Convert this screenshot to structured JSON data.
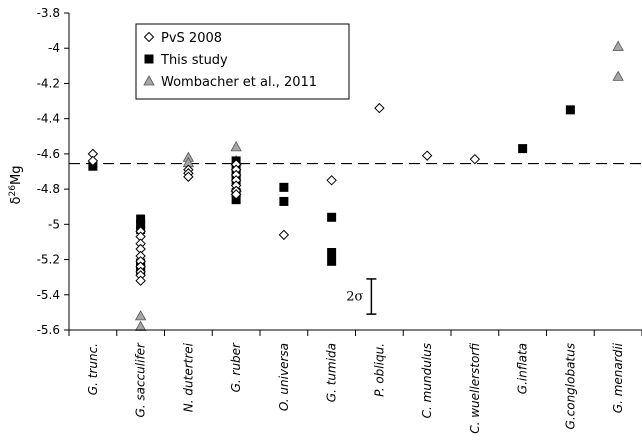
{
  "chart_data": {
    "type": "scatter",
    "ylabel_prefix": "δ",
    "ylabel_sup": "26",
    "ylabel_main": "Mg",
    "ylim": [
      -5.6,
      -3.8
    ],
    "yticks": [
      -5.6,
      -5.4,
      -5.2,
      -5.0,
      -4.8,
      -4.6,
      -4.4,
      -4.2,
      -4.0,
      -3.8
    ],
    "ytick_labels": [
      "-5.6",
      "-5.4",
      "-5.2",
      "-5",
      "-4.8",
      "-4.6",
      "-4.4",
      "-4.2",
      "-4",
      "-3.8"
    ],
    "categories": [
      "G. trunc.",
      "G. sacculifer",
      "N. dutertrei",
      "G. ruber",
      "O. universa",
      "G. tumida",
      "P. obliqu.",
      "C. mundulus",
      "C. wuellerstorfi",
      "G.inflata",
      "G.conglobatus",
      "G. menardii"
    ],
    "reference_line": -4.655,
    "legend_position": "top-left",
    "annotation": {
      "label": "2σ",
      "y_from": -5.51,
      "y_to": -5.31,
      "category_index": 6
    },
    "series": [
      {
        "name": "PvS 2008",
        "marker": "diamond-open",
        "points": [
          {
            "cat": 0,
            "y": [
              -4.6,
              -4.64
            ]
          },
          {
            "cat": 1,
            "y": [
              -5.04,
              -5.07,
              -5.11,
              -5.14,
              -5.18,
              -5.21,
              -5.24,
              -5.27,
              -5.29,
              -5.32
            ]
          },
          {
            "cat": 2,
            "y": [
              -4.69,
              -4.71,
              -4.73
            ]
          },
          {
            "cat": 3,
            "y": [
              -4.66,
              -4.69,
              -4.72,
              -4.75,
              -4.78,
              -4.81,
              -4.83
            ]
          },
          {
            "cat": 4,
            "y": [
              -5.06
            ]
          },
          {
            "cat": 5,
            "y": [
              -4.75
            ]
          },
          {
            "cat": 6,
            "y": [
              -4.34
            ]
          },
          {
            "cat": 7,
            "y": [
              -4.61
            ]
          },
          {
            "cat": 8,
            "y": [
              -4.63
            ]
          }
        ]
      },
      {
        "name": "This study",
        "marker": "square-filled",
        "points": [
          {
            "cat": 0,
            "y": [
              -4.67
            ]
          },
          {
            "cat": 1,
            "y": [
              -4.97,
              -5.0,
              -5.03,
              -5.22,
              -5.24,
              -5.26
            ]
          },
          {
            "cat": 3,
            "y": [
              -4.64,
              -4.68,
              -4.72,
              -4.75,
              -4.82,
              -4.86
            ]
          },
          {
            "cat": 4,
            "y": [
              -4.79,
              -4.87
            ]
          },
          {
            "cat": 5,
            "y": [
              -4.96,
              -5.16,
              -5.21
            ]
          },
          {
            "cat": 9,
            "y": [
              -4.57
            ]
          },
          {
            "cat": 10,
            "y": [
              -4.35
            ]
          }
        ]
      },
      {
        "name": "Wombacher et al., 2011",
        "marker": "triangle-gray",
        "points": [
          {
            "cat": 1,
            "y": [
              -5.52,
              -5.58
            ]
          },
          {
            "cat": 2,
            "y": [
              -4.62,
              -4.65
            ]
          },
          {
            "cat": 3,
            "y": [
              -4.56,
              -4.64,
              -4.79
            ]
          },
          {
            "cat": 11,
            "y": [
              -3.99,
              -4.16
            ]
          }
        ]
      }
    ]
  },
  "colors": {
    "square": "#000000",
    "triangle_fill": "#a6a6a6",
    "axis": "#000000"
  }
}
